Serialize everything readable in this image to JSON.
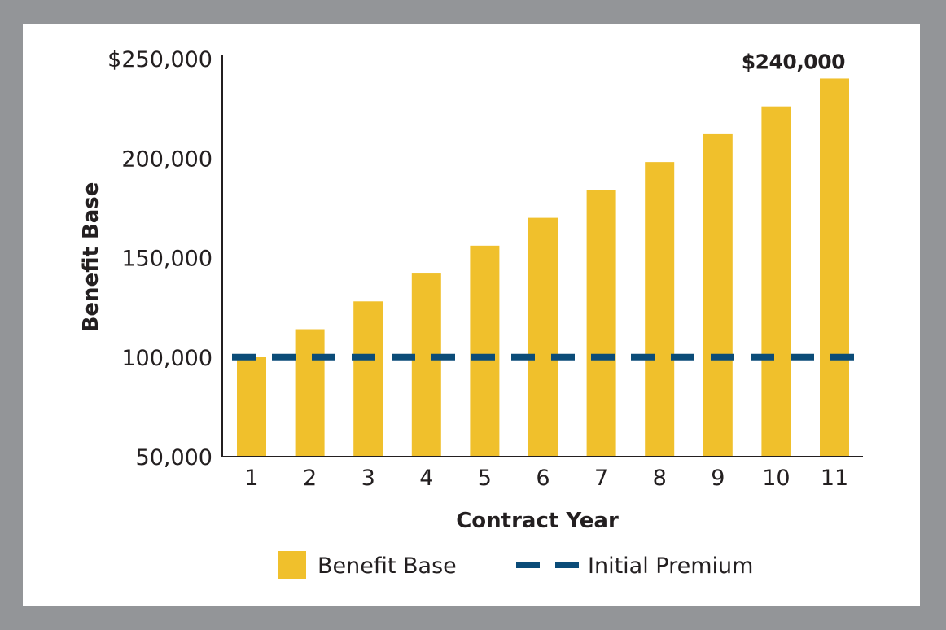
{
  "chart_data": {
    "type": "bar",
    "title": "",
    "xlabel": "Contract Year",
    "ylabel": "Benefit Base",
    "categories": [
      "1",
      "2",
      "3",
      "4",
      "5",
      "6",
      "7",
      "8",
      "9",
      "10",
      "11"
    ],
    "series": [
      {
        "name": "Benefit Base",
        "type": "bar",
        "color": "#f0c02c",
        "values": [
          100000,
          114000,
          128000,
          142000,
          156000,
          170000,
          184000,
          198000,
          212000,
          226000,
          240000
        ]
      },
      {
        "name": "Initial Premium",
        "type": "line",
        "style": "dashed",
        "color": "#0b4c78",
        "value": 100000
      }
    ],
    "ylim": [
      50000,
      250000
    ],
    "yticks": [
      50000,
      100000,
      150000,
      200000,
      250000
    ],
    "ytick_labels": [
      "50,000",
      "100,000",
      "150,000",
      "200,000",
      "$250,000"
    ],
    "annotations": [
      {
        "category": "11",
        "text": "$240,000"
      }
    ],
    "grid": false,
    "legend": {
      "position": "bottom-center",
      "entries": [
        "Benefit Base",
        "Initial Premium"
      ]
    }
  },
  "colors": {
    "frame": "#939598",
    "background": "#ffffff",
    "axis": "#231f20",
    "bar": "#f0c02c",
    "premium_line": "#0b4c78"
  }
}
